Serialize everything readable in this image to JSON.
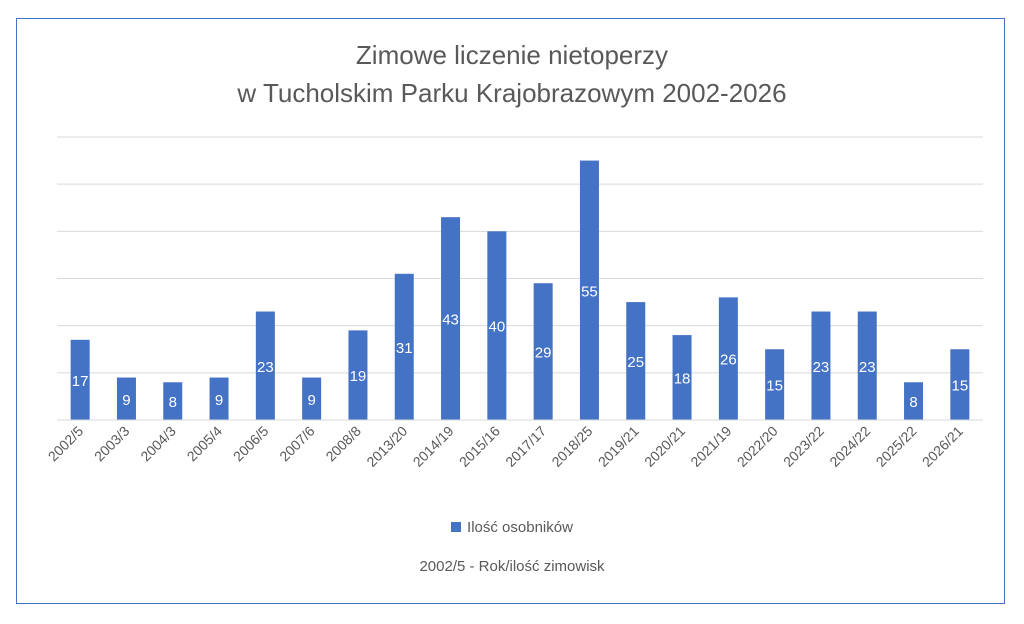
{
  "chart_data": {
    "type": "bar",
    "title_line1": "Zimowe liczenie nietoperzy",
    "title_line2": "w Tucholskim Parku Krajobrazowym 2002-2026",
    "categories": [
      "2002/5",
      "2003/3",
      "2004/3",
      "2005/4",
      "2006/5",
      "2007/6",
      "2008/8",
      "2013/20",
      "2014/19",
      "2015/16",
      "2017/17",
      "2018/25",
      "2019/21",
      "2020/21",
      "2021/19",
      "2022/20",
      "2023/22",
      "2024/22",
      "2025/22",
      "2026/21"
    ],
    "series": [
      {
        "name": "Ilość osobników",
        "color": "#4472c4",
        "values": [
          17,
          9,
          8,
          9,
          23,
          9,
          19,
          31,
          43,
          40,
          29,
          55,
          25,
          18,
          26,
          15,
          23,
          23,
          8,
          15
        ]
      }
    ],
    "ylim": [
      0,
      60
    ],
    "grid": true,
    "legend_position": "bottom",
    "data_labels": "inside-bar",
    "footnote": "2002/5 - Rok/ilość zimowisk",
    "colors": {
      "bar": "#4472c4",
      "grid": "#d9d9d9",
      "text": "#595959",
      "border": "#4472c4"
    }
  }
}
